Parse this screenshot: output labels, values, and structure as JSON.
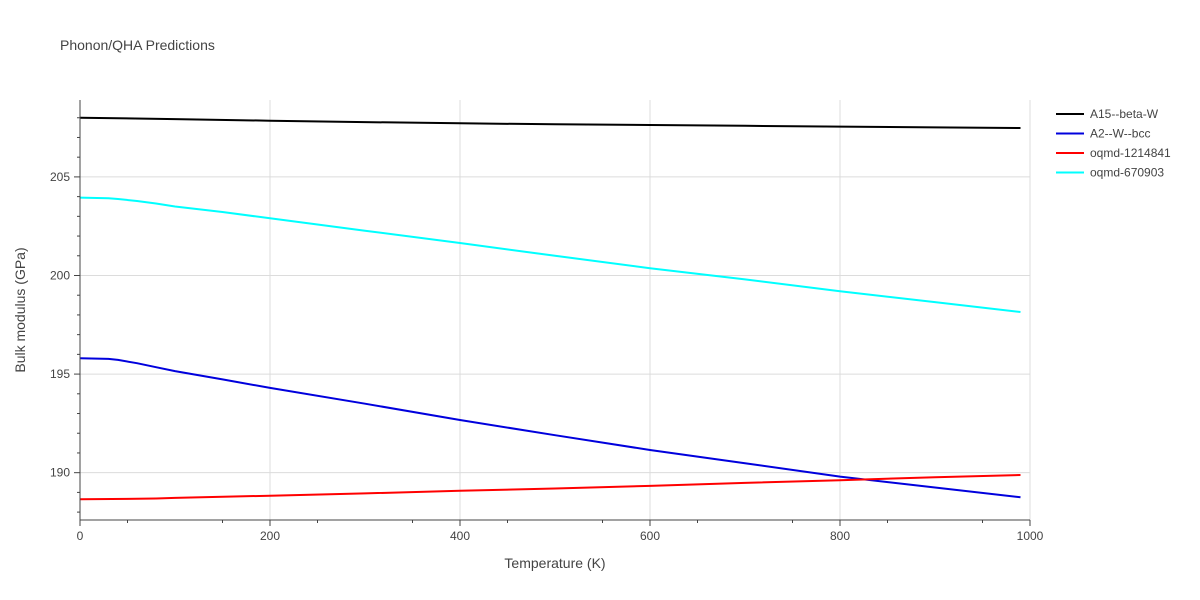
{
  "chart_data": {
    "type": "line",
    "title": "Phonon/QHA Predictions",
    "xlabel": "Temperature (K)",
    "ylabel": "Bulk modulus (GPa)",
    "xlim": [
      0,
      1000
    ],
    "ylim": [
      187.6,
      208.9
    ],
    "x_ticks": [
      0,
      200,
      400,
      600,
      800,
      1000
    ],
    "y_ticks": [
      190,
      195,
      200,
      205
    ],
    "grid": true,
    "legend_position": "right",
    "series": [
      {
        "name": "A15--beta-W",
        "color": "#000000",
        "x": [
          0,
          100,
          200,
          300,
          400,
          500,
          600,
          700,
          800,
          900,
          990
        ],
        "y": [
          208.0,
          207.93,
          207.85,
          207.78,
          207.72,
          207.67,
          207.63,
          207.59,
          207.55,
          207.51,
          207.48
        ]
      },
      {
        "name": "A2--W--bcc",
        "color": "#0000dd",
        "x": [
          0,
          30,
          40,
          60,
          80,
          100,
          150,
          200,
          300,
          400,
          500,
          600,
          700,
          800,
          900,
          990
        ],
        "y": [
          195.8,
          195.77,
          195.72,
          195.55,
          195.35,
          195.15,
          194.73,
          194.3,
          193.5,
          192.67,
          191.9,
          191.15,
          190.48,
          189.8,
          189.25,
          188.75
        ]
      },
      {
        "name": "oqmd-1214841",
        "color": "#ff0000",
        "x": [
          0,
          50,
          80,
          100,
          200,
          300,
          400,
          500,
          600,
          700,
          800,
          900,
          990
        ],
        "y": [
          188.65,
          188.67,
          188.69,
          188.72,
          188.83,
          188.95,
          189.08,
          189.2,
          189.33,
          189.48,
          189.62,
          189.77,
          189.88
        ]
      },
      {
        "name": "oqmd-670903",
        "color": "#00ffff",
        "x": [
          0,
          30,
          40,
          60,
          80,
          100,
          150,
          200,
          300,
          400,
          500,
          600,
          700,
          800,
          900,
          990
        ],
        "y": [
          203.95,
          203.92,
          203.88,
          203.78,
          203.65,
          203.5,
          203.22,
          202.9,
          202.27,
          201.65,
          201.0,
          200.37,
          199.8,
          199.2,
          198.65,
          198.15
        ]
      }
    ]
  }
}
